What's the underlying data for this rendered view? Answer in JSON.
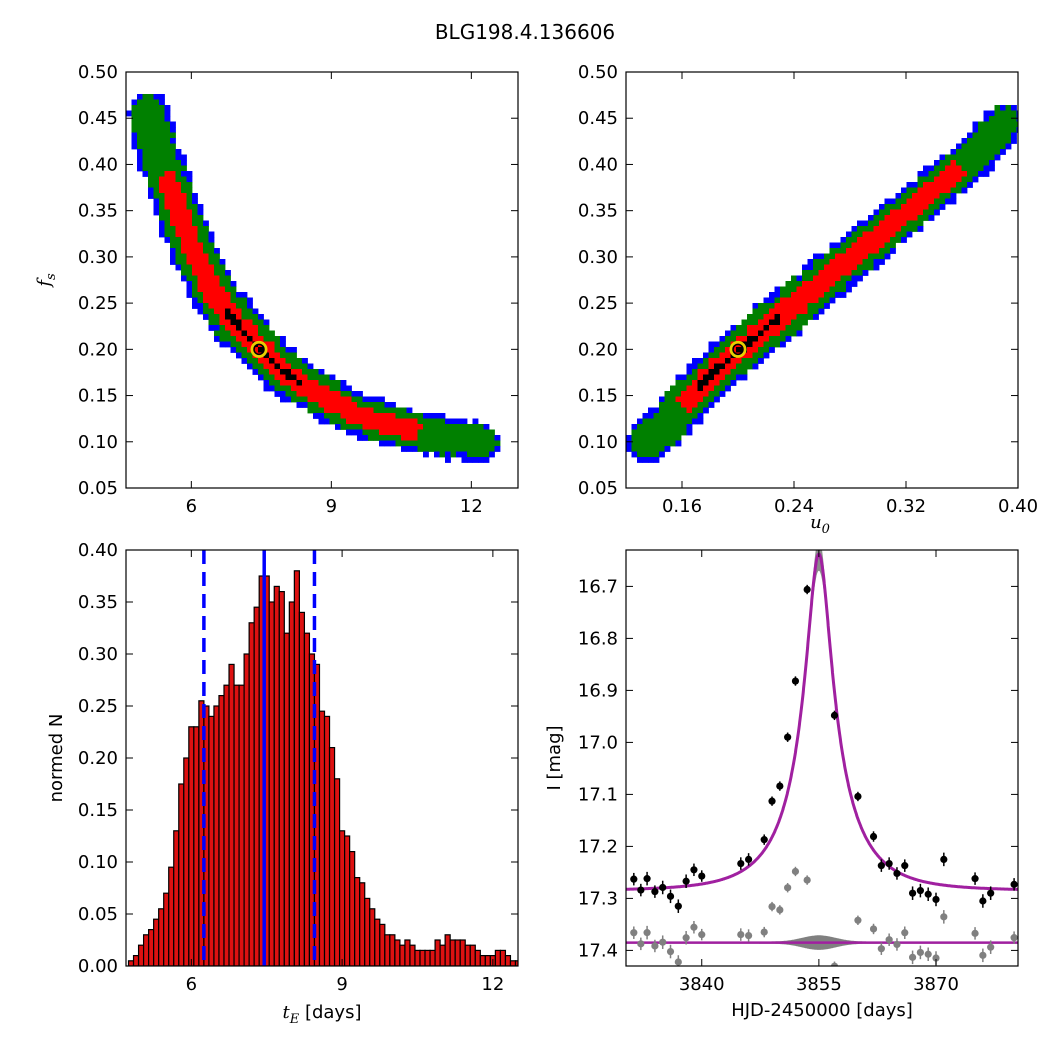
{
  "figure_title": "BLG198.4.136606",
  "colors": {
    "c3": "#0000ff",
    "c2": "#008000",
    "c1": "#ff0000",
    "c0": "#000000",
    "marker_edge": "#e8d000",
    "hist_fill": "#dd1111",
    "model": "#a020a0",
    "data": "#000000",
    "resid": "#808080",
    "band": "#808080"
  },
  "chart_data": [
    {
      "id": "fs_vs_tE",
      "type": "heatmap",
      "ylabel": "f_s",
      "xlabel": "",
      "xlim": [
        4.6,
        13.0
      ],
      "ylim": [
        0.05,
        0.5
      ],
      "x_ticks": [
        "6",
        "9",
        "12"
      ],
      "y_ticks": [
        "0.05",
        "0.10",
        "0.15",
        "0.20",
        "0.25",
        "0.30",
        "0.35",
        "0.40",
        "0.45",
        "0.50"
      ],
      "confidence_levels": [
        "c3",
        "c2",
        "c1",
        "c0"
      ],
      "best_fit": {
        "x": 7.45,
        "y": 0.2
      },
      "ridge": [
        [
          5.1,
          0.455
        ],
        [
          5.3,
          0.41
        ],
        [
          5.6,
          0.37
        ],
        [
          6.0,
          0.31
        ],
        [
          6.5,
          0.26
        ],
        [
          7.0,
          0.225
        ],
        [
          7.5,
          0.2
        ],
        [
          8.0,
          0.175
        ],
        [
          8.8,
          0.15
        ],
        [
          9.5,
          0.13
        ],
        [
          10.5,
          0.115
        ],
        [
          11.3,
          0.105
        ],
        [
          12.2,
          0.1
        ]
      ]
    },
    {
      "id": "fs_vs_u0",
      "type": "heatmap",
      "xlabel": "u_0",
      "ylabel": "",
      "xlim": [
        0.12,
        0.4
      ],
      "ylim": [
        0.05,
        0.5
      ],
      "x_ticks": [
        "0.16",
        "0.24",
        "0.32",
        "0.40"
      ],
      "y_ticks": [
        "0.05",
        "0.10",
        "0.15",
        "0.20",
        "0.25",
        "0.30",
        "0.35",
        "0.40",
        "0.45",
        "0.50"
      ],
      "confidence_levels": [
        "c3",
        "c2",
        "c1",
        "c0"
      ],
      "best_fit": {
        "x": 0.2,
        "y": 0.2
      },
      "ridge": [
        [
          0.135,
          0.1
        ],
        [
          0.15,
          0.12
        ],
        [
          0.17,
          0.155
        ],
        [
          0.19,
          0.185
        ],
        [
          0.21,
          0.21
        ],
        [
          0.23,
          0.235
        ],
        [
          0.25,
          0.26
        ],
        [
          0.27,
          0.285
        ],
        [
          0.29,
          0.31
        ],
        [
          0.31,
          0.335
        ],
        [
          0.33,
          0.36
        ],
        [
          0.35,
          0.385
        ],
        [
          0.37,
          0.41
        ],
        [
          0.39,
          0.445
        ]
      ]
    },
    {
      "id": "tE_histogram",
      "type": "bar",
      "xlabel": "[days]",
      "xlabel_symbol": "t_E",
      "ylabel": "normed N",
      "xlim": [
        4.7,
        12.5
      ],
      "ylim": [
        0.0,
        0.4
      ],
      "x_ticks": [
        "6",
        "9",
        "12"
      ],
      "y_ticks": [
        "0.00",
        "0.05",
        "0.10",
        "0.15",
        "0.20",
        "0.25",
        "0.30",
        "0.35",
        "0.40"
      ],
      "bin_start": 4.75,
      "bin_width": 0.1,
      "values": [
        0.005,
        0.01,
        0.02,
        0.03,
        0.035,
        0.045,
        0.055,
        0.07,
        0.095,
        0.13,
        0.175,
        0.2,
        0.23,
        0.23,
        0.255,
        0.25,
        0.24,
        0.25,
        0.26,
        0.27,
        0.29,
        0.27,
        0.27,
        0.3,
        0.33,
        0.345,
        0.375,
        0.375,
        0.35,
        0.365,
        0.36,
        0.32,
        0.35,
        0.38,
        0.34,
        0.32,
        0.3,
        0.29,
        0.245,
        0.24,
        0.21,
        0.18,
        0.13,
        0.125,
        0.11,
        0.085,
        0.08,
        0.065,
        0.055,
        0.045,
        0.04,
        0.03,
        0.03,
        0.025,
        0.02,
        0.025,
        0.02,
        0.015,
        0.015,
        0.015,
        0.015,
        0.025,
        0.02,
        0.03,
        0.025,
        0.025,
        0.025,
        0.02,
        0.02,
        0.015,
        0.01,
        0.01,
        0.01,
        0.015,
        0.015,
        0.01,
        0.005,
        0.005,
        0.002,
        0.001
      ],
      "median": 7.45,
      "lower": 6.25,
      "upper": 8.45
    },
    {
      "id": "light_curve",
      "type": "scatter",
      "xlabel": "HJD-2450000 [days]",
      "ylabel": "I [mag]",
      "xlim": [
        3830.3,
        3880.5
      ],
      "ylim": [
        17.43,
        16.63
      ],
      "x_ticks": [
        "3840",
        "3855",
        "3870"
      ],
      "y_ticks": [
        "16.7",
        "16.8",
        "16.9",
        "17.0",
        "17.1",
        "17.2",
        "17.3",
        "17.4"
      ],
      "model": {
        "t0": 3855.0,
        "u0": 0.2,
        "tE": 7.45,
        "fs": 0.2,
        "Ibase": 17.285
      },
      "residual_offset": 17.385,
      "data": [
        [
          3831.3,
          17.263,
          0.012
        ],
        [
          3832.2,
          17.284,
          0.012
        ],
        [
          3833.0,
          17.262,
          0.013
        ],
        [
          3834.0,
          17.287,
          0.012
        ],
        [
          3835.0,
          17.279,
          0.013
        ],
        [
          3836.0,
          17.296,
          0.013
        ],
        [
          3837.0,
          17.315,
          0.013
        ],
        [
          3838.0,
          17.267,
          0.013
        ],
        [
          3839.0,
          17.245,
          0.012
        ],
        [
          3840.0,
          17.257,
          0.011
        ],
        [
          3845.0,
          17.233,
          0.012
        ],
        [
          3846.0,
          17.225,
          0.012
        ],
        [
          3848.0,
          17.187,
          0.01
        ],
        [
          3849.0,
          17.113,
          0.008
        ],
        [
          3850.0,
          17.084,
          0.008
        ],
        [
          3851.0,
          16.99,
          0.007
        ],
        [
          3852.0,
          16.882,
          0.006
        ],
        [
          3853.5,
          16.706,
          0.005
        ],
        [
          3857.0,
          16.948,
          0.006
        ],
        [
          3860.0,
          17.104,
          0.009
        ],
        [
          3862.0,
          17.181,
          0.01
        ],
        [
          3863.0,
          17.237,
          0.012
        ],
        [
          3864.0,
          17.233,
          0.012
        ],
        [
          3865.0,
          17.252,
          0.012
        ],
        [
          3866.0,
          17.237,
          0.012
        ],
        [
          3867.0,
          17.29,
          0.013
        ],
        [
          3868.0,
          17.285,
          0.013
        ],
        [
          3869.0,
          17.292,
          0.013
        ],
        [
          3870.0,
          17.302,
          0.013
        ],
        [
          3871.0,
          17.225,
          0.013
        ],
        [
          3875.0,
          17.262,
          0.012
        ],
        [
          3876.0,
          17.305,
          0.013
        ],
        [
          3877.0,
          17.29,
          0.013
        ],
        [
          3880.0,
          17.273,
          0.012
        ]
      ]
    }
  ]
}
